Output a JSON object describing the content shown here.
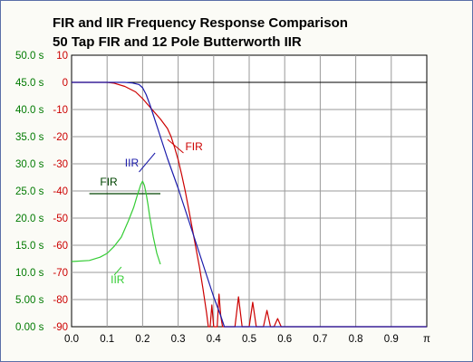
{
  "chart_data": {
    "type": "line",
    "title": "FIR and IIR Frequency Response Comparison",
    "subtitle": "50 Tap FIR  and  12 Pole Butterworth IIR",
    "x_ticks": [
      "0.0",
      "0.1",
      "0.2",
      "0.3",
      "0.4",
      "0.5",
      "0.6",
      "0.7",
      "0.8",
      "0.9",
      "π"
    ],
    "xlim": [
      0,
      1
    ],
    "ylim_magnitude_db": [
      -90,
      10
    ],
    "y_ticks_magnitude": [
      "10",
      "0",
      "-10",
      "-20",
      "-30",
      "-40",
      "-50",
      "-60",
      "-70",
      "-80",
      "-90"
    ],
    "ylim_group_delay_s": [
      0,
      50
    ],
    "y_ticks_delay": [
      "50.0 s",
      "45.0 s",
      "40.0 s",
      "35.0 s",
      "30.0 s",
      "25.0 s",
      "20.0 s",
      "15.0 s",
      "10.0 s",
      "5.00 s",
      "0.00 s"
    ],
    "grid": true,
    "colors": {
      "frame_border": "#5a6fa8",
      "grid": "#9a9a9a",
      "magnitude_axis_text": "#cc0000",
      "delay_axis_text": "#007a00",
      "fir_magnitude": "#cc0000",
      "iir_magnitude": "#1a1aaa",
      "fir_delay": "#004400",
      "iir_delay": "#33cc33"
    },
    "series": [
      {
        "name": "FIR",
        "axis": "magnitude",
        "x": [
          0,
          0.1,
          0.12,
          0.15,
          0.18,
          0.2,
          0.22,
          0.25,
          0.27,
          0.28,
          0.29,
          0.3,
          0.31,
          0.32,
          0.33,
          0.34,
          0.35,
          0.36,
          0.37,
          0.38,
          0.385,
          0.39,
          0.395,
          0.4,
          0.405,
          0.41,
          0.415,
          0.42,
          0.425,
          0.43,
          0.44,
          0.45,
          0.46,
          0.47,
          0.48,
          0.49,
          0.5,
          0.51,
          0.52,
          0.53,
          0.54,
          0.55,
          0.56,
          0.57,
          0.58,
          0.59,
          0.6,
          0.7,
          0.8,
          0.9,
          1.0
        ],
        "values": [
          0,
          0,
          -0.3,
          -1.5,
          -3.5,
          -6,
          -9,
          -13.5,
          -17,
          -20,
          -24,
          -28.5,
          -34,
          -40,
          -47,
          -54,
          -61,
          -68,
          -76,
          -85,
          -90,
          -90,
          -82,
          -90,
          -90,
          -90,
          -78,
          -86,
          -90,
          -90,
          -90,
          -90,
          -90,
          -79,
          -90,
          -90,
          -90,
          -81,
          -90,
          -90,
          -90,
          -84,
          -90,
          -90,
          -87,
          -90,
          -90,
          -90,
          -90,
          -90,
          -90
        ]
      },
      {
        "name": "IIR",
        "axis": "magnitude",
        "x": [
          0,
          0.1,
          0.15,
          0.17,
          0.19,
          0.2,
          0.21,
          0.22,
          0.23,
          0.25,
          0.27,
          0.3,
          0.33,
          0.36,
          0.4,
          0.42,
          0.43,
          0.44,
          0.45,
          1.0
        ],
        "values": [
          0,
          0,
          0,
          -0.2,
          -0.8,
          -2,
          -4.5,
          -8,
          -12,
          -20,
          -28,
          -39,
          -51,
          -63,
          -79,
          -86,
          -90,
          -90,
          -90,
          -90
        ]
      },
      {
        "name": "FIR",
        "axis": "delay",
        "x": [
          0.05,
          0.25
        ],
        "values": [
          24.5,
          24.5
        ]
      },
      {
        "name": "IIR",
        "axis": "delay",
        "x": [
          0,
          0.05,
          0.08,
          0.1,
          0.12,
          0.14,
          0.16,
          0.175,
          0.185,
          0.19,
          0.195,
          0.2,
          0.205,
          0.21,
          0.215,
          0.22,
          0.23,
          0.24,
          0.25
        ],
        "values": [
          12,
          12.2,
          12.8,
          13.5,
          14.8,
          16.5,
          19.5,
          22,
          24.2,
          25.2,
          26.2,
          26.8,
          26,
          24.5,
          22.5,
          20.3,
          16.5,
          13.5,
          11.5
        ]
      }
    ],
    "annotations": [
      {
        "text": "IIR",
        "x": 0.15,
        "y_db": -31,
        "color": "#1a1aaa"
      },
      {
        "text": "FIR",
        "x": 0.32,
        "y_db": -25,
        "color": "#cc0000"
      },
      {
        "text": "FIR",
        "x": 0.08,
        "y_db": -38,
        "color": "#004400"
      },
      {
        "text": "IIR",
        "x": 0.11,
        "y_db": -74,
        "color": "#33cc33"
      }
    ]
  }
}
